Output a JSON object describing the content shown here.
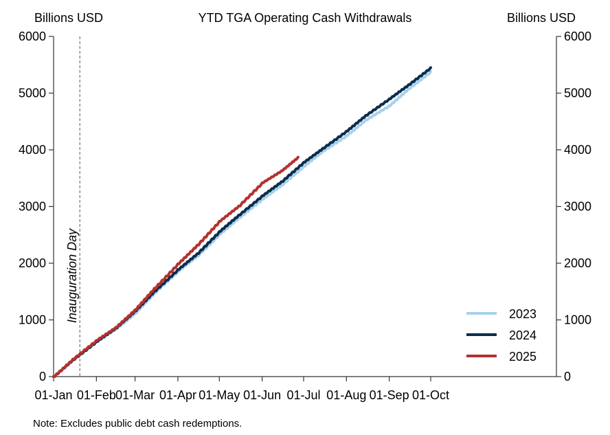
{
  "chart_data": {
    "type": "line",
    "title": "YTD TGA Operating Cash Withdrawals",
    "ylabel_left": "Billions USD",
    "ylabel_right": "Billions USD",
    "ylim": [
      0,
      6000
    ],
    "yticks": [
      0,
      1000,
      2000,
      3000,
      4000,
      5000,
      6000
    ],
    "xlim": [
      "01-Jan",
      "31-Dec"
    ],
    "xticks": [
      {
        "label": "01-Jan",
        "day": 0
      },
      {
        "label": "01-Feb",
        "day": 31
      },
      {
        "label": "01-Mar",
        "day": 60
      },
      {
        "label": "01-Apr",
        "day": 91
      },
      {
        "label": "01-May",
        "day": 121
      },
      {
        "label": "01-Jun",
        "day": 152
      },
      {
        "label": "01-Jul",
        "day": 182
      },
      {
        "label": "01-Aug",
        "day": 213
      },
      {
        "label": "01-Sep",
        "day": 244
      },
      {
        "label": "01-Oct",
        "day": 274
      }
    ],
    "annotation": {
      "label": "Inauguration Day",
      "date": "20-Jan"
    },
    "note": "Note: Excludes public debt cash redemptions.",
    "legend_position": "bottom-right",
    "series": [
      {
        "name": "2023",
        "color": "#a8d1ec",
        "x": [
          "01-Jan",
          "15-Jan",
          "01-Feb",
          "15-Feb",
          "01-Mar",
          "15-Mar",
          "01-Apr",
          "15-Apr",
          "01-May",
          "15-May",
          "01-Jun",
          "15-Jun",
          "01-Jul",
          "15-Jul",
          "01-Aug",
          "15-Aug",
          "01-Sep",
          "15-Sep",
          "01-Oct"
        ],
        "y": [
          0,
          300,
          620,
          840,
          1120,
          1480,
          1860,
          2130,
          2510,
          2800,
          3130,
          3380,
          3710,
          3980,
          4250,
          4530,
          4780,
          5080,
          5380
        ]
      },
      {
        "name": "2024",
        "color": "#0b2e4d",
        "x": [
          "01-Jan",
          "15-Jan",
          "01-Feb",
          "15-Feb",
          "01-Mar",
          "15-Mar",
          "01-Apr",
          "15-Apr",
          "01-May",
          "15-May",
          "01-Jun",
          "15-Jun",
          "01-Jul",
          "15-Jul",
          "01-Aug",
          "15-Aug",
          "01-Sep",
          "15-Sep",
          "01-Oct"
        ],
        "y": [
          0,
          300,
          620,
          860,
          1160,
          1510,
          1890,
          2170,
          2560,
          2850,
          3190,
          3440,
          3780,
          4030,
          4330,
          4610,
          4900,
          5150,
          5450
        ]
      },
      {
        "name": "2025",
        "color": "#b5312f",
        "x": [
          "01-Jan",
          "15-Jan",
          "01-Feb",
          "15-Feb",
          "01-Mar",
          "15-Mar",
          "01-Apr",
          "15-Apr",
          "01-May",
          "15-May",
          "01-Jun",
          "15-Jun",
          "27-Jun"
        ],
        "y": [
          0,
          310,
          640,
          870,
          1180,
          1560,
          1990,
          2320,
          2740,
          3010,
          3420,
          3630,
          3870
        ]
      }
    ]
  }
}
